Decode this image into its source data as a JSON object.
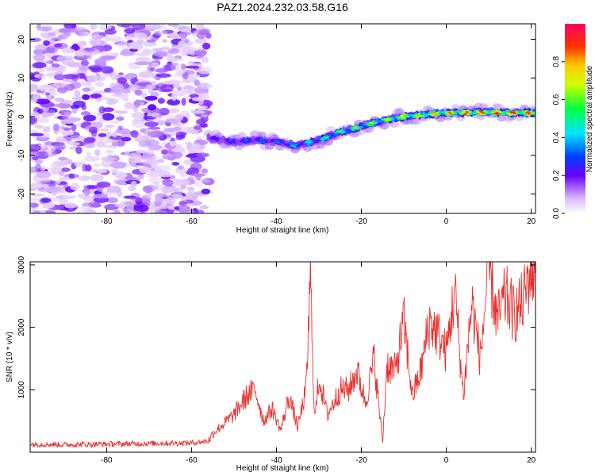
{
  "title": "PAZ1.2024.232.03.58.G16",
  "chart_data": [
    {
      "type": "heatmap",
      "xlabel": "Height of straight line (km)",
      "ylabel": "Frequency (Hz)",
      "xlim": [
        -98,
        21
      ],
      "ylim": [
        -25,
        24
      ],
      "x_ticks": [
        "-80",
        "-60",
        "-40",
        "-20",
        "0",
        "20"
      ],
      "y_ticks": [
        "-20",
        "-10",
        "0",
        "10",
        "20"
      ],
      "colorbar": {
        "label": "Normalized spectral amplitude",
        "range": [
          0,
          1
        ],
        "ticks": [
          "0.0",
          "0.2",
          "0.4",
          "0.6",
          "0.8"
        ]
      },
      "ridge": {
        "x": [
          -56,
          -50,
          -45,
          -40,
          -35,
          -30,
          -25,
          -20,
          -15,
          -10,
          -5,
          0,
          5,
          10,
          15,
          21
        ],
        "y": [
          -5.5,
          -6.5,
          -6,
          -6.5,
          -7.5,
          -6,
          -4,
          -2.5,
          -1,
          0,
          0.5,
          1,
          1,
          1.2,
          1,
          1
        ],
        "amplitude": [
          0.25,
          0.3,
          0.35,
          0.35,
          0.45,
          0.5,
          0.6,
          0.65,
          0.7,
          0.75,
          0.8,
          0.85,
          0.9,
          0.95,
          1.0,
          0.9
        ]
      },
      "noise_region_x": [
        -98,
        -56
      ],
      "grid": false
    },
    {
      "type": "line",
      "xlabel": "Height of straight line (km)",
      "ylabel": "SNR (10 * v/v)",
      "xlim": [
        -98,
        21
      ],
      "ylim": [
        0,
        3050
      ],
      "x_ticks": [
        "-80",
        "-60",
        "-40",
        "-20",
        "0",
        "20"
      ],
      "y_ticks": [
        "1000",
        "2000",
        "3000"
      ],
      "series": [
        {
          "color": "#e8302e",
          "x": [
            -98,
            -90,
            -80,
            -70,
            -60,
            -56,
            -55,
            -50,
            -47,
            -45,
            -43,
            -41,
            -39,
            -37,
            -35,
            -33,
            -32,
            -31,
            -30,
            -28,
            -25,
            -23,
            -21,
            -19,
            -17,
            -15,
            -14,
            -12,
            -10,
            -8,
            -6,
            -4,
            -2,
            0,
            2,
            4,
            6,
            8,
            10,
            12,
            14,
            16,
            18,
            20,
            21
          ],
          "y": [
            130,
            120,
            130,
            140,
            150,
            180,
            300,
            600,
            900,
            1000,
            500,
            700,
            350,
            900,
            400,
            1000,
            2800,
            500,
            1200,
            600,
            1000,
            1000,
            1300,
            800,
            1500,
            150,
            1400,
            1300,
            2100,
            900,
            1300,
            2100,
            1900,
            1600,
            2600,
            900,
            2400,
            1500,
            3000,
            2100,
            2500,
            2200,
            2400,
            2950,
            2750
          ]
        }
      ],
      "grid": false
    }
  ]
}
